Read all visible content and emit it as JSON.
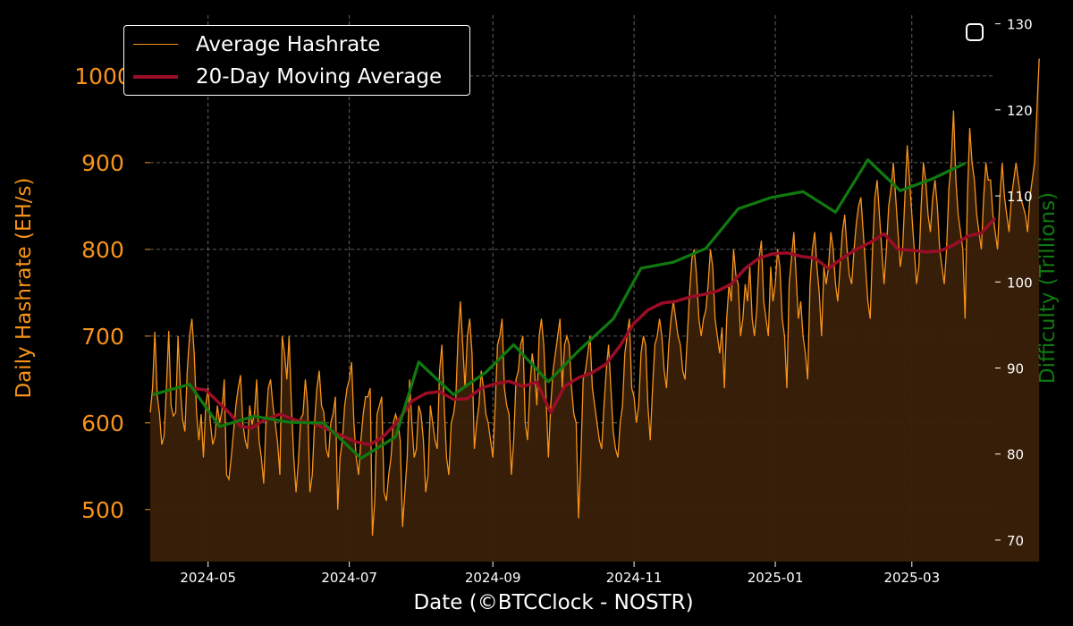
{
  "chart_data": {
    "type": "line",
    "title": "",
    "xlabel": "Date (©BTCClock - NOSTR)",
    "ylabel": "Daily Hashrate (EH/s)",
    "y2label": "Difficulty (Trillions)",
    "x_range": [
      "2024-04-06",
      "2025-04-06"
    ],
    "x_ticks": [
      "2024-05",
      "2024-07",
      "2024-09",
      "2024-11",
      "2025-01",
      "2025-03"
    ],
    "x_tick_dates": [
      "2024-05-01",
      "2024-07-01",
      "2024-09-01",
      "2024-11-01",
      "2025-01-01",
      "2025-03-01"
    ],
    "ylim": [
      440,
      1070
    ],
    "yticks": [
      500,
      600,
      700,
      800,
      900,
      1000
    ],
    "y2lim": [
      67.5,
      131
    ],
    "y2ticks": [
      70,
      80,
      90,
      100,
      110,
      120,
      130
    ],
    "grid": true,
    "legend_position": "top-left",
    "colors": {
      "hashrate": "#f7931a",
      "moving_average": "#9b0d26",
      "difficulty": "#107a10",
      "fill": "#3a2008",
      "left_axis": "#f7931a",
      "right_axis": "#107a10"
    },
    "series": [
      {
        "name": "Average Hashrate",
        "axis": "left",
        "style": "thin-line-with-fill",
        "start_date": "2024-04-06",
        "values": [
          612,
          640,
          705,
          632,
          610,
          575,
          585,
          640,
          706,
          620,
          608,
          612,
          700,
          640,
          604,
          590,
          660,
          700,
          720,
          680,
          612,
          580,
          610,
          560,
          620,
          640,
          600,
          575,
          585,
          620,
          600,
          615,
          650,
          540,
          535,
          560,
          590,
          620,
          640,
          655,
          600,
          580,
          570,
          620,
          598,
          610,
          650,
          580,
          560,
          530,
          600,
          640,
          650,
          620,
          600,
          578,
          540,
          700,
          680,
          650,
          700,
          620,
          560,
          520,
          555,
          605,
          610,
          650,
          620,
          520,
          540,
          600,
          640,
          660,
          620,
          612,
          570,
          560,
          600,
          610,
          630,
          500,
          560,
          580,
          620,
          640,
          650,
          670,
          600,
          560,
          540,
          580,
          610,
          630,
          630,
          640,
          470,
          510,
          610,
          620,
          630,
          520,
          510,
          540,
          560,
          600,
          610,
          600,
          580,
          480,
          520,
          560,
          650,
          600,
          560,
          570,
          620,
          610,
          580,
          520,
          540,
          620,
          600,
          580,
          570,
          660,
          690,
          620,
          560,
          540,
          600,
          610,
          630,
          700,
          740,
          690,
          640,
          700,
          720,
          680,
          570,
          600,
          620,
          660,
          640,
          610,
          600,
          580,
          560,
          620,
          690,
          700,
          720,
          640,
          620,
          610,
          540,
          580,
          650,
          660,
          690,
          700,
          600,
          580,
          640,
          680,
          660,
          620,
          700,
          720,
          690,
          630,
          560,
          620,
          660,
          680,
          700,
          720,
          640,
          690,
          700,
          690,
          640,
          610,
          600,
          490,
          560,
          650,
          660,
          680,
          700,
          640,
          620,
          600,
          580,
          570,
          620,
          660,
          690,
          640,
          590,
          570,
          560,
          600,
          620,
          680,
          700,
          720,
          640,
          630,
          600,
          620,
          680,
          700,
          690,
          620,
          580,
          640,
          690,
          700,
          720,
          700,
          660,
          640,
          690,
          720,
          740,
          720,
          700,
          690,
          660,
          650,
          700,
          750,
          790,
          800,
          770,
          720,
          700,
          720,
          730,
          760,
          800,
          780,
          720,
          700,
          680,
          710,
          640,
          720,
          760,
          740,
          800,
          770,
          760,
          700,
          720,
          760,
          740,
          780,
          720,
          700,
          730,
          790,
          810,
          740,
          720,
          700,
          780,
          740,
          760,
          800,
          780,
          720,
          700,
          640,
          760,
          790,
          820,
          770,
          720,
          740,
          700,
          680,
          650,
          760,
          800,
          820,
          780,
          750,
          700,
          780,
          760,
          780,
          820,
          800,
          760,
          740,
          780,
          820,
          840,
          800,
          770,
          760,
          800,
          830,
          850,
          860,
          820,
          780,
          740,
          720,
          800,
          860,
          880,
          840,
          800,
          760,
          800,
          850,
          870,
          900,
          860,
          820,
          780,
          800,
          860,
          920,
          880,
          840,
          800,
          760,
          780,
          850,
          900,
          880,
          840,
          820,
          860,
          880,
          850,
          800,
          780,
          760,
          800,
          870,
          900,
          960,
          880,
          840,
          820,
          800,
          720,
          860,
          940,
          900,
          880,
          840,
          820,
          800,
          860,
          900,
          880,
          880,
          840,
          820,
          800,
          860,
          900,
          860,
          840,
          820,
          860,
          880,
          900,
          880,
          860,
          850,
          840,
          820,
          860,
          880,
          900,
          960,
          1020
        ]
      },
      {
        "name": "20-Day Moving Average",
        "axis": "left",
        "style": "thick-line",
        "dates": [
          "2024-04-24",
          "2024-04-30",
          "2024-05-05",
          "2024-05-10",
          "2024-05-15",
          "2024-05-20",
          "2024-05-25",
          "2024-06-01",
          "2024-06-08",
          "2024-06-15",
          "2024-06-22",
          "2024-06-28",
          "2024-07-04",
          "2024-07-10",
          "2024-07-16",
          "2024-07-22",
          "2024-07-28",
          "2024-08-03",
          "2024-08-09",
          "2024-08-15",
          "2024-08-21",
          "2024-08-27",
          "2024-09-02",
          "2024-09-08",
          "2024-09-14",
          "2024-09-20",
          "2024-09-26",
          "2024-10-02",
          "2024-10-08",
          "2024-10-14",
          "2024-10-20",
          "2024-10-26",
          "2024-11-01",
          "2024-11-07",
          "2024-11-13",
          "2024-11-19",
          "2024-11-25",
          "2024-12-01",
          "2024-12-07",
          "2024-12-13",
          "2024-12-19",
          "2024-12-25",
          "2024-12-31",
          "2025-01-06",
          "2025-01-12",
          "2025-01-18",
          "2025-01-24",
          "2025-01-30",
          "2025-02-05",
          "2025-02-11",
          "2025-02-17",
          "2025-02-23",
          "2025-03-01",
          "2025-03-07",
          "2025-03-13",
          "2025-03-19",
          "2025-03-25",
          "2025-03-31",
          "2025-04-06"
        ],
        "values": [
          640,
          638,
          625,
          612,
          596,
          594,
          603,
          610,
          603,
          600,
          592,
          585,
          578,
          575,
          585,
          602,
          625,
          634,
          636,
          627,
          628,
          640,
          645,
          648,
          642,
          647,
          612,
          642,
          652,
          658,
          668,
          689,
          715,
          730,
          738,
          740,
          745,
          748,
          752,
          760,
          778,
          790,
          795,
          796,
          792,
          790,
          778,
          790,
          800,
          808,
          818,
          800,
          799,
          797,
          798,
          805,
          815,
          819,
          836
        ]
      },
      {
        "name": "Difficulty",
        "axis": "right",
        "style": "step-line",
        "dates": [
          "2024-04-07",
          "2024-04-23",
          "2024-05-06",
          "2024-05-21",
          "2024-06-05",
          "2024-06-20",
          "2024-07-06",
          "2024-07-21",
          "2024-07-31",
          "2024-08-15",
          "2024-08-29",
          "2024-09-10",
          "2024-09-25",
          "2024-10-08",
          "2024-10-23",
          "2024-11-04",
          "2024-11-18",
          "2024-12-02",
          "2024-12-16",
          "2024-12-30",
          "2025-01-13",
          "2025-01-27",
          "2025-02-10",
          "2025-02-24",
          "2025-03-10",
          "2025-03-24"
        ],
        "values": [
          86.9,
          88.1,
          83.2,
          84.4,
          83.7,
          83.6,
          79.5,
          82.0,
          90.7,
          86.9,
          89.5,
          92.7,
          88.4,
          92.0,
          95.7,
          101.6,
          102.3,
          103.9,
          108.5,
          109.8,
          110.5,
          108.1,
          114.2,
          110.6,
          112.0,
          113.8
        ]
      }
    ],
    "legend": [
      "Average Hashrate",
      "20-Day Moving Average"
    ]
  }
}
